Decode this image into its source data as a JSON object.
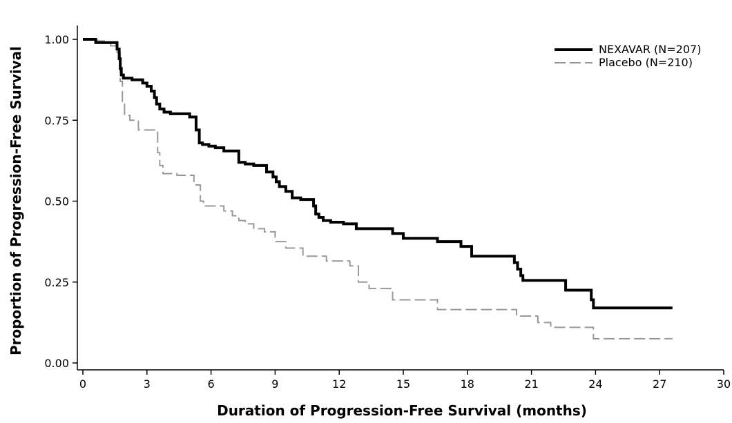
{
  "chart_data": {
    "type": "line",
    "xlabel": "Duration of Progression-Free Survival (months)",
    "ylabel": "Proportion of Progression-Free Survival",
    "xlim": [
      0,
      30
    ],
    "ylim": [
      0,
      1.0
    ],
    "xticks": [
      0,
      3,
      6,
      9,
      12,
      15,
      18,
      21,
      24,
      27,
      30
    ],
    "xtick_labels": [
      "0",
      "3",
      "6",
      "9",
      "12",
      "15",
      "18",
      "21",
      "24",
      "27",
      "30"
    ],
    "yticks": [
      0,
      0.25,
      0.5,
      0.75,
      1.0
    ],
    "ytick_labels": [
      "0.00",
      "0.25",
      "0.50",
      "0.75",
      "1.00"
    ],
    "grid": false,
    "legend_position": "top-right",
    "series": [
      {
        "name": "NEXAVAR (N=207)",
        "color": "#000000",
        "style": "solid",
        "step": true,
        "x": [
          0,
          0.6,
          0.9,
          1.6,
          1.7,
          1.75,
          1.8,
          1.85,
          1.9,
          2.0,
          2.3,
          2.8,
          3.0,
          3.2,
          3.35,
          3.45,
          3.6,
          3.8,
          4.1,
          5.0,
          5.3,
          5.45,
          5.6,
          5.9,
          6.2,
          6.6,
          7.3,
          7.6,
          8.0,
          8.6,
          8.9,
          9.05,
          9.2,
          9.5,
          9.8,
          10.2,
          10.8,
          10.9,
          11.05,
          11.25,
          11.6,
          12.2,
          12.8,
          14.5,
          15.0,
          16.6,
          17.7,
          18.2,
          20.2,
          20.35,
          20.5,
          20.6,
          22.6,
          23.8,
          23.9,
          27.6
        ],
        "y": [
          1.0,
          0.99,
          0.99,
          0.97,
          0.94,
          0.91,
          0.89,
          0.89,
          0.88,
          0.88,
          0.875,
          0.865,
          0.855,
          0.84,
          0.82,
          0.8,
          0.785,
          0.775,
          0.77,
          0.76,
          0.72,
          0.68,
          0.675,
          0.67,
          0.665,
          0.655,
          0.62,
          0.615,
          0.61,
          0.59,
          0.575,
          0.56,
          0.545,
          0.53,
          0.51,
          0.505,
          0.485,
          0.46,
          0.45,
          0.44,
          0.435,
          0.43,
          0.415,
          0.4,
          0.385,
          0.375,
          0.36,
          0.33,
          0.31,
          0.29,
          0.27,
          0.255,
          0.225,
          0.195,
          0.17,
          0.17
        ]
      },
      {
        "name": "Placebo (N=210)",
        "color": "#999999",
        "style": "dashed",
        "step": true,
        "x": [
          0,
          0.7,
          1.0,
          1.3,
          1.6,
          1.75,
          1.85,
          1.95,
          2.2,
          2.6,
          3.5,
          3.6,
          3.75,
          4.4,
          5.2,
          5.5,
          5.65,
          6.6,
          7.0,
          7.3,
          7.6,
          8.0,
          8.5,
          9.0,
          9.5,
          10.3,
          11.4,
          12.5,
          12.9,
          13.4,
          14.5,
          16.6,
          17.8,
          20.3,
          21.3,
          21.9,
          23.9,
          27.6
        ],
        "y": [
          1.0,
          0.995,
          0.99,
          0.98,
          0.96,
          0.87,
          0.8,
          0.765,
          0.75,
          0.72,
          0.65,
          0.61,
          0.585,
          0.58,
          0.55,
          0.5,
          0.485,
          0.47,
          0.455,
          0.44,
          0.43,
          0.415,
          0.405,
          0.375,
          0.355,
          0.33,
          0.315,
          0.3,
          0.25,
          0.23,
          0.195,
          0.165,
          0.165,
          0.145,
          0.125,
          0.11,
          0.075,
          0.075
        ]
      }
    ]
  }
}
